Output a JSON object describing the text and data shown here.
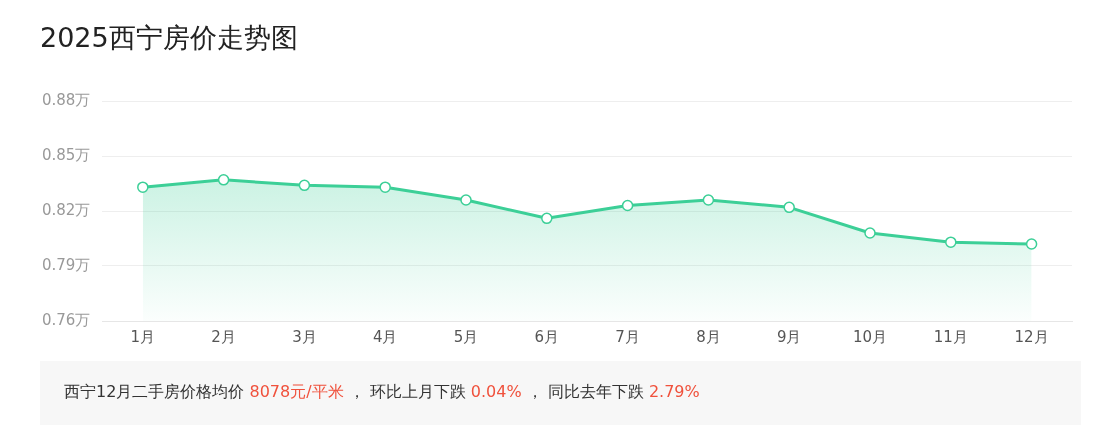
{
  "chart_data": {
    "type": "area",
    "title": "2025西宁房价走势图",
    "categories": [
      "1月",
      "2月",
      "3月",
      "4月",
      "5月",
      "6月",
      "7月",
      "8月",
      "9月",
      "10月",
      "11月",
      "12月"
    ],
    "values": [
      0.833,
      0.837,
      0.834,
      0.833,
      0.826,
      0.816,
      0.823,
      0.826,
      0.822,
      0.808,
      0.803,
      0.802
    ],
    "color": "#3ccf97",
    "ylim": [
      0.76,
      0.88
    ],
    "yticks": [
      {
        "value": 0.76,
        "label": "0.76万"
      },
      {
        "value": 0.79,
        "label": "0.79万"
      },
      {
        "value": 0.82,
        "label": "0.82万"
      },
      {
        "value": 0.85,
        "label": "0.85万"
      },
      {
        "value": 0.88,
        "label": "0.88万"
      }
    ],
    "grid": "y",
    "legend": false,
    "marker": "circle",
    "line_style": "solid",
    "annotations": [
      "西宁12月二手房价格均价 8078元/平米 ， 环比上月下跌 0.04% ， 同比去年下跌 2.79%"
    ]
  }
}
